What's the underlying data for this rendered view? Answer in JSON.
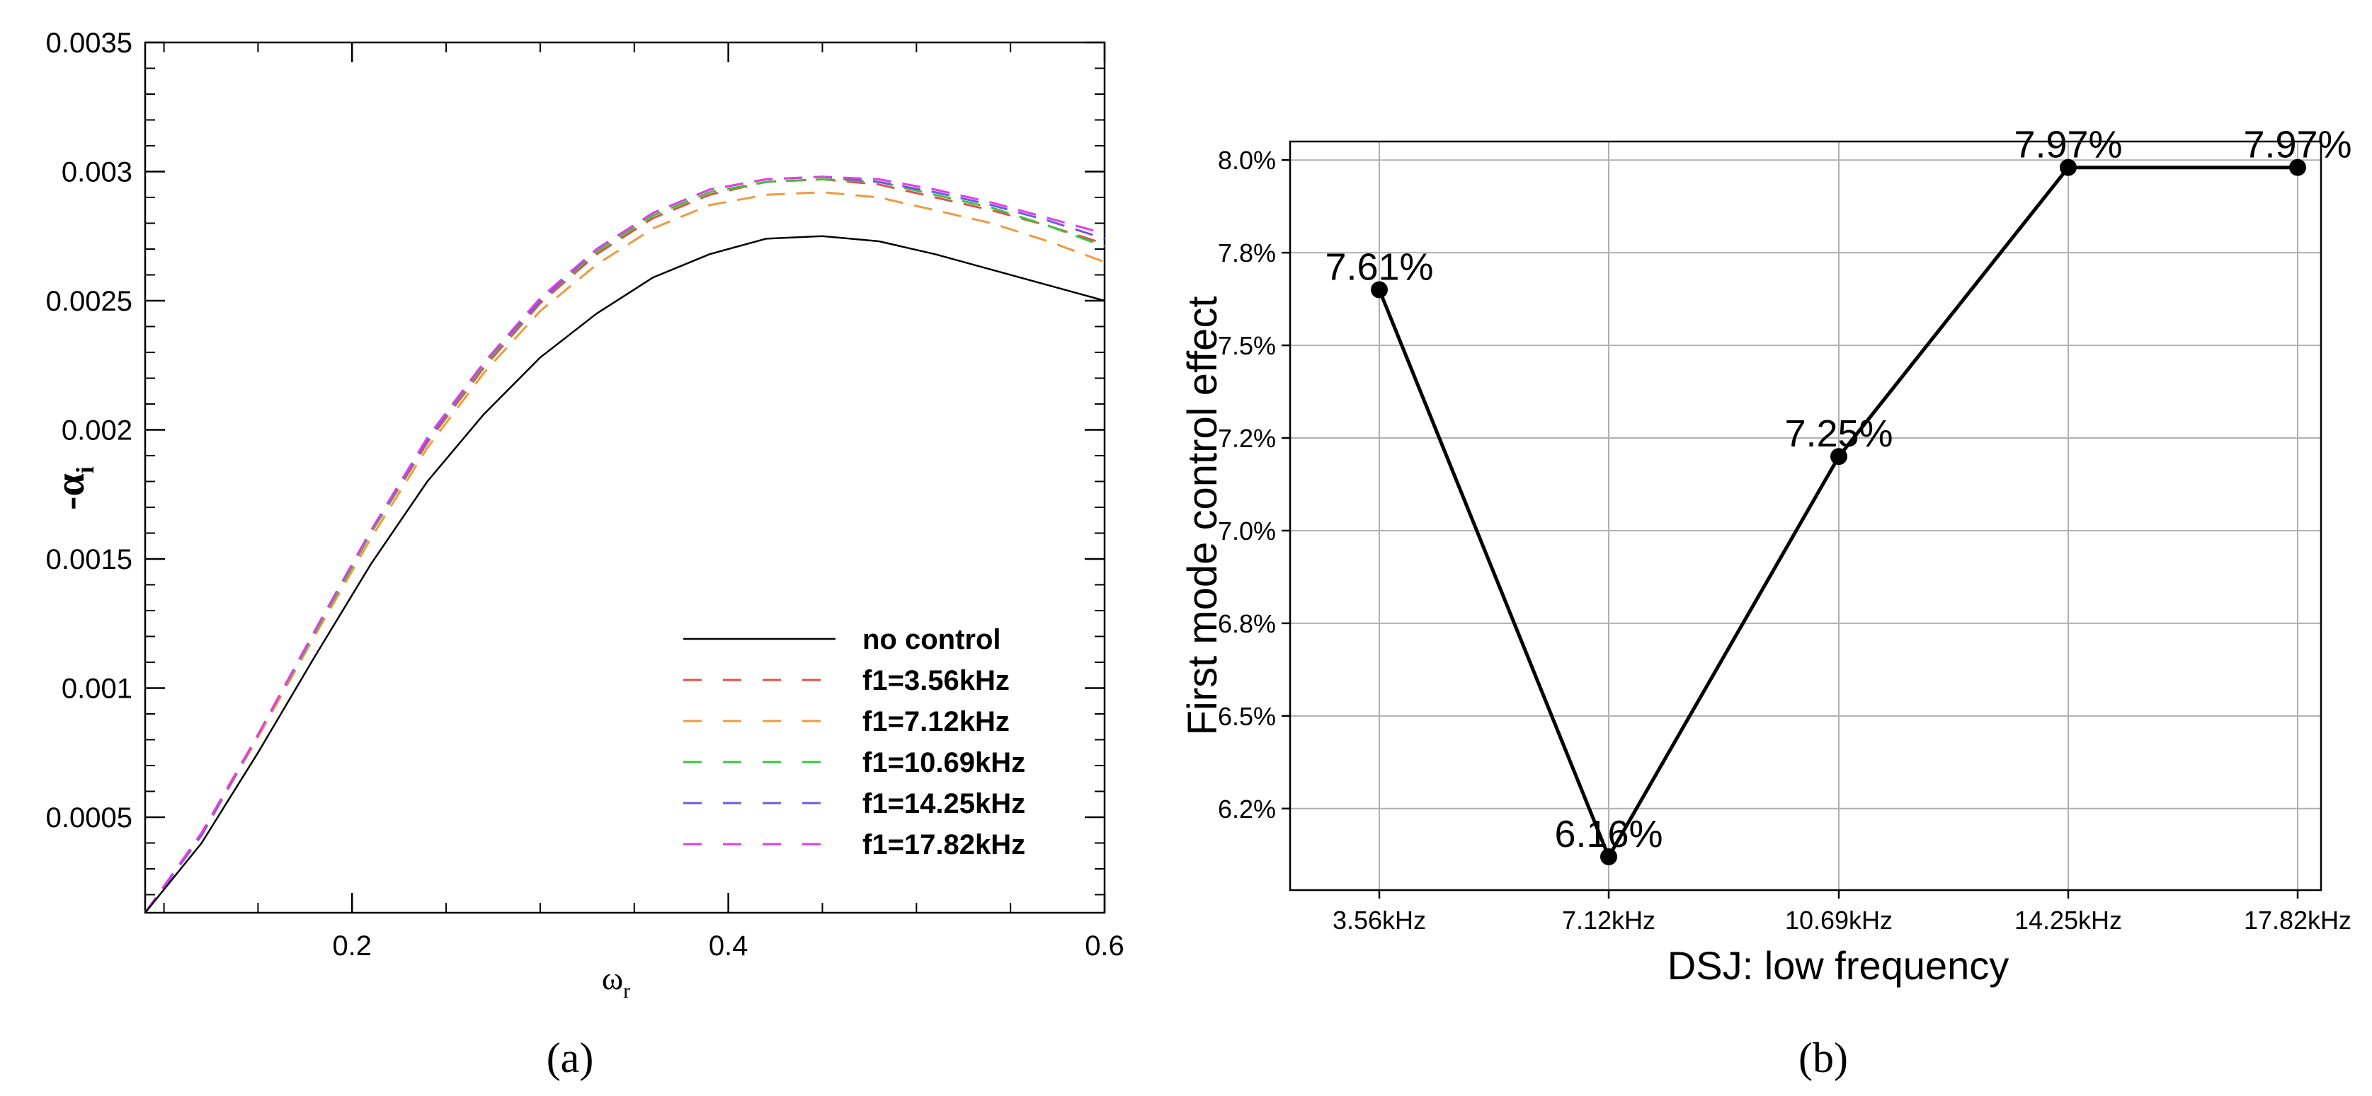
{
  "chart_data": [
    {
      "panel": "(a)",
      "type": "line",
      "xlabel_main": "ω",
      "xlabel_sub": "r",
      "ylabel_main": "-α",
      "ylabel_sub": "i",
      "xlim": [
        0.09,
        0.6
      ],
      "ylim": [
        0.00013,
        0.0035
      ],
      "xticks": [
        0.2,
        0.4,
        0.6
      ],
      "xtick_labels": [
        "0.2",
        "0.4",
        "0.6"
      ],
      "yticks": [
        0.0005,
        0.001,
        0.0015,
        0.002,
        0.0025,
        0.003,
        0.0035
      ],
      "ytick_labels": [
        "0.0005",
        "0.001",
        "0.0015",
        "0.002",
        "0.0025",
        "0.003",
        "0.0035"
      ],
      "legend": [
        "no control",
        "f1=3.56kHz",
        "f1=7.12kHz",
        "f1=10.69kHz",
        "f1=14.25kHz",
        "f1=17.82kHz"
      ],
      "series": [
        {
          "name": "no control",
          "color": "#000000",
          "dashed": false,
          "x": [
            0.09,
            0.12,
            0.15,
            0.18,
            0.21,
            0.24,
            0.27,
            0.3,
            0.33,
            0.36,
            0.39,
            0.42,
            0.45,
            0.48,
            0.51,
            0.54,
            0.57,
            0.6
          ],
          "y": [
            0.00013,
            0.0004,
            0.00075,
            0.00112,
            0.00148,
            0.0018,
            0.00206,
            0.00228,
            0.00245,
            0.00259,
            0.00268,
            0.00274,
            0.00275,
            0.00273,
            0.00268,
            0.00262,
            0.00256,
            0.0025
          ]
        },
        {
          "name": "f1=3.56kHz",
          "color": "#e0504a",
          "dashed": true,
          "x": [
            0.09,
            0.12,
            0.15,
            0.18,
            0.21,
            0.24,
            0.27,
            0.3,
            0.33,
            0.36,
            0.39,
            0.42,
            0.45,
            0.48,
            0.51,
            0.54,
            0.57,
            0.6
          ],
          "y": [
            0.00013,
            0.00043,
            0.00081,
            0.00121,
            0.0016,
            0.00195,
            0.00224,
            0.00249,
            0.00268,
            0.00282,
            0.00291,
            0.00296,
            0.00297,
            0.00295,
            0.0029,
            0.00285,
            0.00279,
            0.00272
          ]
        },
        {
          "name": "f1=7.12kHz",
          "color": "#f09a3c",
          "dashed": true,
          "x": [
            0.09,
            0.12,
            0.15,
            0.18,
            0.21,
            0.24,
            0.27,
            0.3,
            0.33,
            0.36,
            0.39,
            0.42,
            0.45,
            0.48,
            0.51,
            0.54,
            0.57,
            0.6
          ],
          "y": [
            0.00013,
            0.00043,
            0.00081,
            0.0012,
            0.00158,
            0.00193,
            0.00222,
            0.00246,
            0.00264,
            0.00278,
            0.00287,
            0.00291,
            0.00292,
            0.0029,
            0.00285,
            0.0028,
            0.00273,
            0.00265
          ]
        },
        {
          "name": "f1=10.69kHz",
          "color": "#3cc43c",
          "dashed": true,
          "x": [
            0.09,
            0.12,
            0.15,
            0.18,
            0.21,
            0.24,
            0.27,
            0.3,
            0.33,
            0.36,
            0.39,
            0.42,
            0.45,
            0.48,
            0.51,
            0.54,
            0.57,
            0.6
          ],
          "y": [
            0.00013,
            0.00043,
            0.00082,
            0.00121,
            0.0016,
            0.00196,
            0.00225,
            0.0025,
            0.00269,
            0.00283,
            0.00292,
            0.00296,
            0.00297,
            0.00296,
            0.00291,
            0.00286,
            0.00279,
            0.00271
          ]
        },
        {
          "name": "f1=14.25kHz",
          "color": "#6a5ae8",
          "dashed": true,
          "x": [
            0.09,
            0.12,
            0.15,
            0.18,
            0.21,
            0.24,
            0.27,
            0.3,
            0.33,
            0.36,
            0.39,
            0.42,
            0.45,
            0.48,
            0.51,
            0.54,
            0.57,
            0.6
          ],
          "y": [
            0.00013,
            0.00043,
            0.00082,
            0.00122,
            0.00161,
            0.00196,
            0.00226,
            0.0025,
            0.0027,
            0.00284,
            0.00293,
            0.00297,
            0.00298,
            0.00296,
            0.00292,
            0.00287,
            0.00281,
            0.00274
          ]
        },
        {
          "name": "f1=17.82kHz",
          "color": "#e63ce6",
          "dashed": true,
          "x": [
            0.09,
            0.12,
            0.15,
            0.18,
            0.21,
            0.24,
            0.27,
            0.3,
            0.33,
            0.36,
            0.39,
            0.42,
            0.45,
            0.48,
            0.51,
            0.54,
            0.57,
            0.6
          ],
          "y": [
            0.00013,
            0.00044,
            0.00082,
            0.00122,
            0.00161,
            0.00197,
            0.00226,
            0.00251,
            0.0027,
            0.00284,
            0.00293,
            0.00297,
            0.00298,
            0.00297,
            0.00293,
            0.00288,
            0.00282,
            0.00276
          ]
        }
      ]
    },
    {
      "panel": "(b)",
      "type": "line",
      "xlabel": "DSJ: low frequency",
      "ylabel": "First mode control effect",
      "categories": [
        "3.56kHz",
        "7.12kHz",
        "10.69kHz",
        "14.25kHz",
        "17.82kHz"
      ],
      "values": [
        7.61,
        6.16,
        7.25,
        7.97,
        7.97
      ],
      "value_labels": [
        "7.61%",
        "6.16%",
        "7.25%",
        "7.97%",
        "7.97%"
      ],
      "plot_values": [
        7.65,
        6.12,
        7.2,
        7.98,
        7.98
      ],
      "ylim": [
        6.03,
        8.05
      ],
      "yticks": [
        6.25,
        6.5,
        6.75,
        7.0,
        7.25,
        7.5,
        7.75,
        8.0
      ],
      "ytick_labels": [
        "6.2%",
        "6.5%",
        "6.8%",
        "7.0%",
        "7.2%",
        "7.5%",
        "7.8%",
        "8.0%"
      ],
      "grid": true,
      "line_color": "#000000"
    }
  ],
  "captions": {
    "a": "(a)",
    "b": "(b)"
  }
}
